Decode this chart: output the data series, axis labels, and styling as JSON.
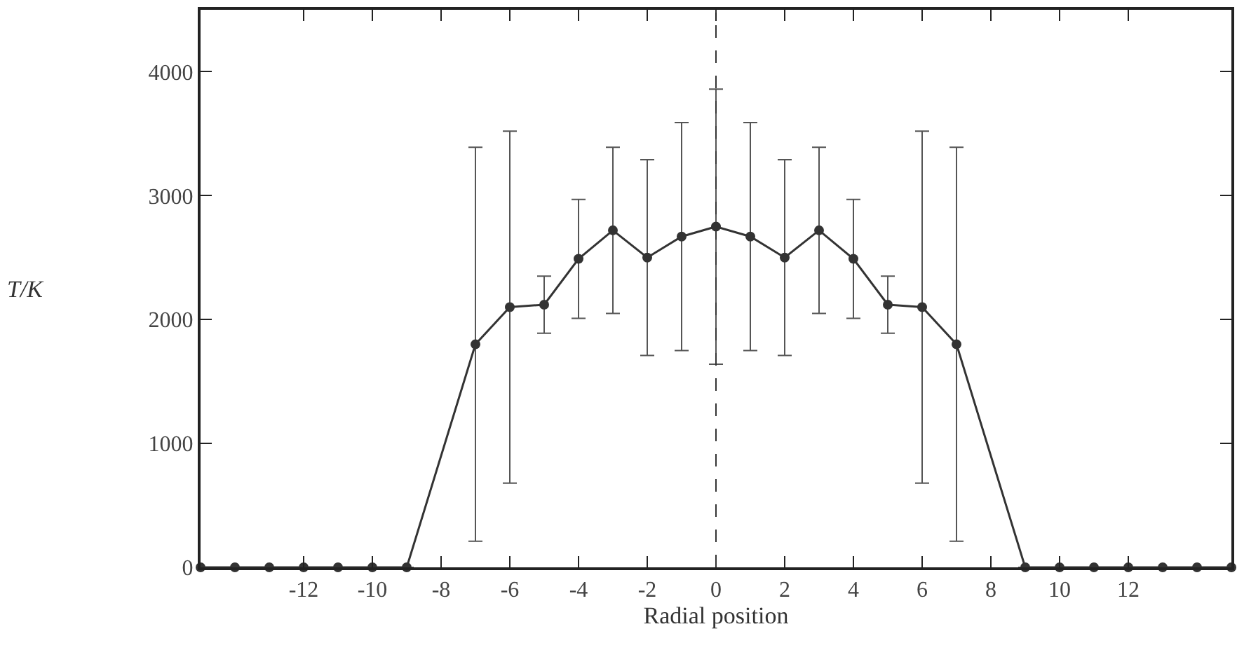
{
  "chart_data": {
    "type": "line",
    "xlabel": "Radial position",
    "ylabel": "T/K",
    "x": [
      -15,
      -14,
      -13,
      -12,
      -11,
      -10,
      -9,
      -7,
      -6,
      -5,
      -4,
      -3,
      -2,
      -1,
      0,
      1,
      2,
      3,
      4,
      5,
      6,
      7,
      9,
      10,
      11,
      12,
      13,
      14,
      15
    ],
    "series": [
      {
        "color": "#333333",
        "values": [
          0,
          0,
          0,
          0,
          0,
          0,
          0,
          1800,
          2100,
          2120,
          2490,
          2720,
          2500,
          2670,
          2750,
          2670,
          2500,
          2720,
          2490,
          2120,
          2100,
          1800,
          0,
          0,
          0,
          0,
          0,
          0,
          0
        ],
        "errors": [
          null,
          null,
          null,
          null,
          null,
          null,
          null,
          1590,
          1420,
          230,
          480,
          670,
          790,
          920,
          1110,
          920,
          790,
          670,
          480,
          230,
          1420,
          1590,
          null,
          null,
          null,
          null,
          null,
          null,
          null
        ]
      }
    ],
    "xlim": [
      -15,
      15
    ],
    "xticks": [
      -12,
      -10,
      -8,
      -6,
      -4,
      -2,
      0,
      2,
      4,
      6,
      8,
      10,
      12
    ],
    "ylim": [
      0,
      4500
    ],
    "yticks": [
      0,
      1000,
      2000,
      3000,
      4000
    ],
    "ref_lines": [
      {
        "axis": "x",
        "value": 0,
        "line_style": "dashed",
        "color": "#333333"
      }
    ],
    "marker": "circle",
    "line_style": "solid"
  }
}
